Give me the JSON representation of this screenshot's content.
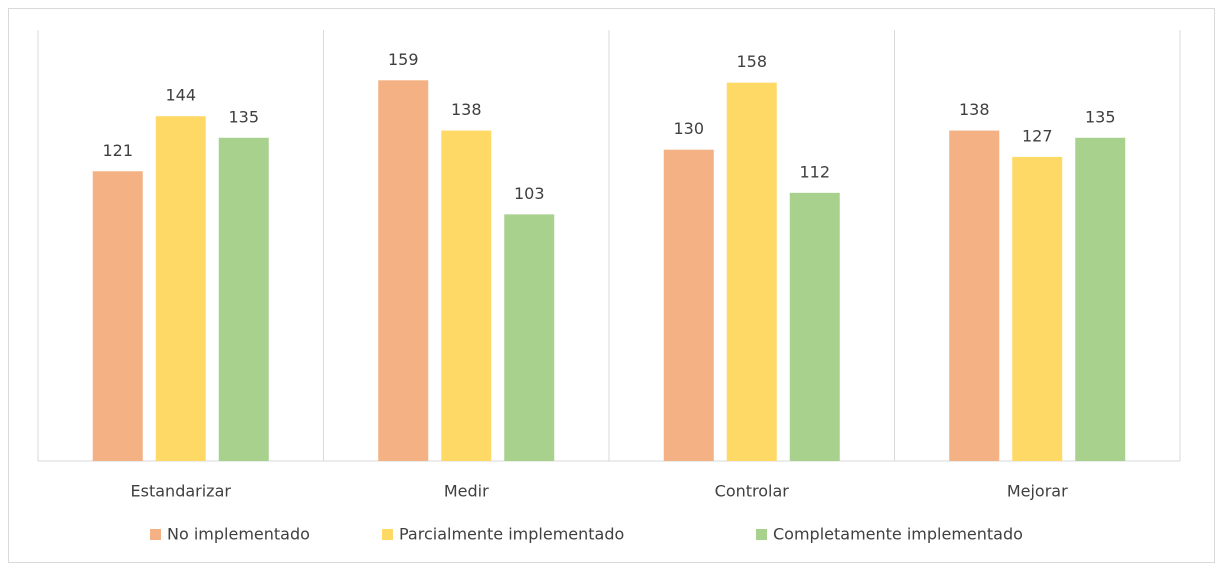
{
  "chart_data": {
    "type": "bar",
    "categories": [
      "Estandarizar",
      "Medir",
      "Controlar",
      "Mejorar"
    ],
    "series": [
      {
        "name": "No implementado",
        "color": "#f4b183",
        "values": [
          121,
          159,
          130,
          138
        ]
      },
      {
        "name": "Parcialmente implementado",
        "color": "#ffd966",
        "values": [
          144,
          138,
          158,
          127
        ]
      },
      {
        "name": "Completamente implementado",
        "color": "#a9d18e",
        "values": [
          135,
          103,
          112,
          135
        ]
      }
    ],
    "ylim": [
      0,
      180
    ],
    "legend": "bottom"
  }
}
